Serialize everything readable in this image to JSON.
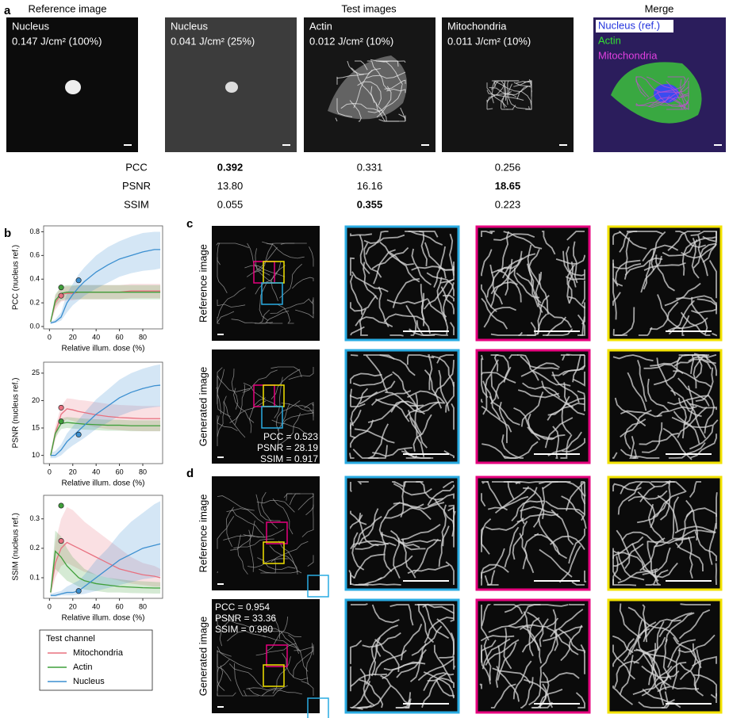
{
  "panel_a": {
    "label": "a",
    "headers": [
      "Reference image",
      "Test images",
      "Merge"
    ],
    "tiles": [
      {
        "channel": "Nucleus",
        "dose": "0.147 J/cm² (100%)"
      },
      {
        "channel": "Nucleus",
        "dose": "0.041 J/cm² (25%)"
      },
      {
        "channel": "Actin",
        "dose": "0.012 J/cm² (10%)"
      },
      {
        "channel": "Mitochondria",
        "dose": "0.011 J/cm² (10%)"
      }
    ],
    "merge_labels": [
      "Nucleus (ref.)",
      "Actin",
      "Mitochondria"
    ],
    "metrics": [
      {
        "name": "PCC",
        "values": [
          "0.392",
          "0.331",
          "0.256"
        ],
        "bold": 0
      },
      {
        "name": "PSNR",
        "values": [
          "13.80",
          "16.16",
          "18.65"
        ],
        "bold": 2
      },
      {
        "name": "SSIM",
        "values": [
          "0.055",
          "0.355",
          "0.223"
        ],
        "bold": 1
      }
    ]
  },
  "panel_b": {
    "label": "b"
  },
  "panel_c": {
    "label": "c",
    "rows": [
      "Reference image",
      "Generated image"
    ],
    "metrics": [
      "PCC = 0.523",
      "PSNR = 28.19",
      "SSIM = 0.917"
    ]
  },
  "panel_d": {
    "label": "d",
    "rows": [
      "Reference image",
      "Generated image"
    ],
    "metrics": [
      "PCC = 0.954",
      "PSNR = 33.36",
      "SSIM = 0.980"
    ]
  },
  "chart_data": [
    {
      "type": "line",
      "ylabel": "PCC (nucleus ref.)",
      "xlabel": "Relative illum. dose (%)",
      "xlim": [
        -5,
        97
      ],
      "xticks": [
        0,
        20,
        40,
        60,
        80
      ],
      "ylim": [
        -0.02,
        0.85
      ],
      "yticks": [
        {
          "value": 0,
          "label": "0.0"
        },
        0.2,
        0.4,
        0.6,
        0.8
      ],
      "x": [
        1,
        5,
        10,
        15,
        20,
        25,
        30,
        40,
        50,
        60,
        70,
        80,
        90,
        95
      ],
      "series": [
        {
          "color": "#e8707f",
          "values": [
            0.04,
            0.2,
            0.27,
            0.28,
            0.28,
            0.29,
            0.29,
            0.29,
            0.29,
            0.29,
            0.3,
            0.3,
            0.3,
            0.3
          ],
          "lower": [
            0.03,
            0.14,
            0.21,
            0.22,
            0.22,
            0.23,
            0.23,
            0.23,
            0.23,
            0.23,
            0.24,
            0.24,
            0.24,
            0.24
          ],
          "upper": [
            0.05,
            0.26,
            0.33,
            0.34,
            0.34,
            0.35,
            0.35,
            0.35,
            0.35,
            0.35,
            0.36,
            0.36,
            0.36,
            0.36
          ],
          "marker": {
            "x": 10,
            "y": 0.26
          }
        },
        {
          "color": "#3f9f3a",
          "values": [
            0.04,
            0.22,
            0.28,
            0.29,
            0.29,
            0.29,
            0.29,
            0.29,
            0.29,
            0.29,
            0.29,
            0.29,
            0.29,
            0.29
          ],
          "lower": [
            0.03,
            0.17,
            0.22,
            0.23,
            0.23,
            0.23,
            0.23,
            0.23,
            0.23,
            0.23,
            0.23,
            0.23,
            0.23,
            0.23
          ],
          "upper": [
            0.05,
            0.27,
            0.34,
            0.35,
            0.35,
            0.35,
            0.35,
            0.35,
            0.35,
            0.35,
            0.35,
            0.35,
            0.35,
            0.35
          ],
          "marker": {
            "x": 10,
            "y": 0.33
          }
        },
        {
          "color": "#3b8fd0",
          "values": [
            0.03,
            0.04,
            0.08,
            0.2,
            0.27,
            0.33,
            0.38,
            0.46,
            0.52,
            0.57,
            0.6,
            0.63,
            0.65,
            0.65
          ],
          "lower": [
            0.02,
            0.03,
            0.05,
            0.12,
            0.18,
            0.22,
            0.26,
            0.32,
            0.37,
            0.42,
            0.45,
            0.47,
            0.48,
            0.49
          ],
          "upper": [
            0.04,
            0.06,
            0.12,
            0.28,
            0.36,
            0.44,
            0.5,
            0.6,
            0.67,
            0.72,
            0.76,
            0.79,
            0.8,
            0.8
          ],
          "marker": {
            "x": 25,
            "y": 0.39
          }
        }
      ]
    },
    {
      "type": "line",
      "ylabel": "PSNR (nucleus ref.)",
      "xlabel": "Relative illum. dose (%)",
      "xlim": [
        -5,
        97
      ],
      "xticks": [
        0,
        20,
        40,
        60,
        80
      ],
      "ylim": [
        8.5,
        27
      ],
      "yticks": [
        10,
        15,
        20,
        25
      ],
      "x": [
        1,
        5,
        10,
        15,
        20,
        25,
        30,
        40,
        50,
        60,
        70,
        80,
        90,
        95
      ],
      "series": [
        {
          "color": "#e8707f",
          "values": [
            10,
            14,
            17.5,
            18.5,
            18.3,
            18,
            17.8,
            17.4,
            17.1,
            16.9,
            16.8,
            16.7,
            16.7,
            16.7
          ],
          "lower": [
            9.5,
            12.8,
            16,
            16.6,
            16.3,
            15.9,
            15.6,
            15.1,
            14.8,
            14.6,
            14.5,
            14.4,
            14.4,
            14.4
          ],
          "upper": [
            10.5,
            15.2,
            19,
            20.4,
            20.3,
            20.1,
            20,
            19.7,
            19.4,
            19.2,
            19.1,
            19,
            19,
            19
          ],
          "marker": {
            "x": 10,
            "y": 18.7
          }
        },
        {
          "color": "#3f9f3a",
          "values": [
            10,
            14,
            15.8,
            16,
            15.9,
            15.8,
            15.7,
            15.6,
            15.5,
            15.5,
            15.4,
            15.4,
            15.4,
            15.4
          ],
          "lower": [
            9.5,
            13.2,
            14.8,
            15,
            14.9,
            14.8,
            14.7,
            14.6,
            14.5,
            14.5,
            14.4,
            14.4,
            14.4,
            14.4
          ],
          "upper": [
            10.5,
            14.8,
            16.8,
            17,
            16.9,
            16.8,
            16.7,
            16.6,
            16.5,
            16.5,
            16.4,
            16.4,
            16.4,
            16.4
          ],
          "marker": {
            "x": 10,
            "y": 16.2
          }
        },
        {
          "color": "#3b8fd0",
          "values": [
            10,
            10,
            11,
            12.5,
            13.5,
            14.5,
            15.5,
            17.5,
            19,
            20.5,
            21.5,
            22.2,
            22.7,
            22.8
          ],
          "lower": [
            9.5,
            9.5,
            10,
            11,
            11.8,
            12.5,
            13.2,
            14.8,
            16,
            17.2,
            18,
            18.5,
            18.8,
            18.9
          ],
          "upper": [
            10.5,
            10.8,
            12,
            14,
            15.3,
            16.5,
            17.8,
            20.2,
            22,
            23.8,
            25,
            25.8,
            26.4,
            26.6
          ],
          "marker": {
            "x": 25,
            "y": 13.8
          }
        }
      ]
    },
    {
      "type": "line",
      "ylabel": "SSIM (nucleus ref.)",
      "xlabel": "Relative illum. dose (%)",
      "xlim": [
        -5,
        97
      ],
      "xticks": [
        0,
        20,
        40,
        60,
        80
      ],
      "ylim": [
        0.03,
        0.38
      ],
      "yticks": [
        0.1,
        0.2,
        0.3
      ],
      "x": [
        1,
        5,
        10,
        15,
        20,
        25,
        30,
        40,
        50,
        60,
        70,
        80,
        90,
        95
      ],
      "legend_title": "Test channel",
      "series": [
        {
          "name": "Mitochondria",
          "color": "#e8707f",
          "values": [
            0.05,
            0.15,
            0.2,
            0.22,
            0.21,
            0.2,
            0.19,
            0.17,
            0.15,
            0.13,
            0.12,
            0.11,
            0.105,
            0.1
          ],
          "lower": [
            0.04,
            0.1,
            0.14,
            0.15,
            0.14,
            0.13,
            0.12,
            0.11,
            0.1,
            0.09,
            0.08,
            0.075,
            0.07,
            0.07
          ],
          "upper": [
            0.06,
            0.22,
            0.3,
            0.34,
            0.33,
            0.31,
            0.29,
            0.26,
            0.23,
            0.2,
            0.17,
            0.15,
            0.14,
            0.13
          ],
          "marker": {
            "x": 10,
            "y": 0.225
          }
        },
        {
          "name": "Actin",
          "color": "#3f9f3a",
          "values": [
            0.05,
            0.19,
            0.17,
            0.14,
            0.12,
            0.1,
            0.09,
            0.08,
            0.075,
            0.07,
            0.068,
            0.066,
            0.065,
            0.065
          ],
          "lower": [
            0.04,
            0.13,
            0.11,
            0.09,
            0.08,
            0.07,
            0.06,
            0.055,
            0.05,
            0.05,
            0.048,
            0.047,
            0.046,
            0.046
          ],
          "upper": [
            0.06,
            0.26,
            0.24,
            0.2,
            0.17,
            0.15,
            0.13,
            0.11,
            0.1,
            0.095,
            0.09,
            0.088,
            0.086,
            0.085
          ],
          "marker": {
            "x": 10,
            "y": 0.345
          }
        },
        {
          "name": "Nucleus",
          "color": "#3b8fd0",
          "values": [
            0.04,
            0.04,
            0.045,
            0.05,
            0.05,
            0.055,
            0.07,
            0.1,
            0.13,
            0.16,
            0.18,
            0.2,
            0.21,
            0.215
          ],
          "lower": [
            0.035,
            0.035,
            0.04,
            0.04,
            0.04,
            0.042,
            0.045,
            0.055,
            0.065,
            0.075,
            0.085,
            0.095,
            0.1,
            0.105
          ],
          "upper": [
            0.045,
            0.05,
            0.055,
            0.07,
            0.08,
            0.09,
            0.11,
            0.16,
            0.2,
            0.25,
            0.29,
            0.32,
            0.35,
            0.36
          ],
          "marker": {
            "x": 25,
            "y": 0.055
          }
        }
      ]
    }
  ]
}
